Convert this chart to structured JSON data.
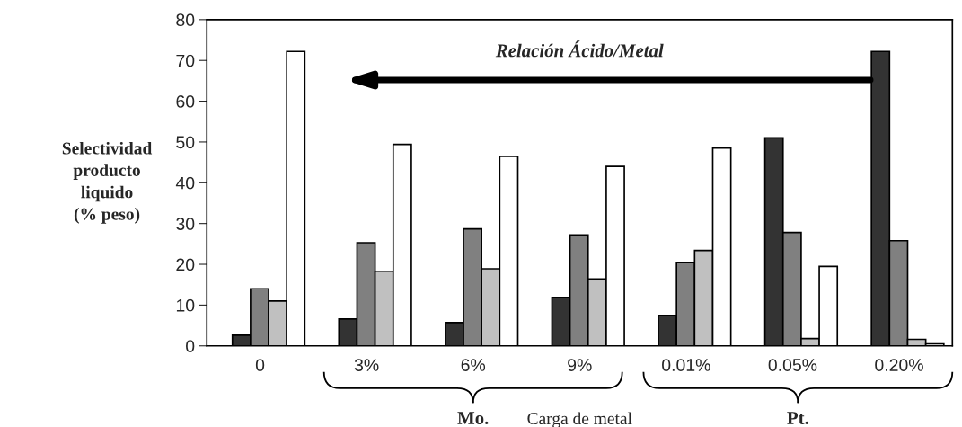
{
  "chart_data": {
    "type": "bar",
    "ylabel": "Selectividad\nproducto\nliquido\n(% peso)",
    "xlabel": "Carga de metal",
    "categories": [
      "0",
      "3%",
      "6%",
      "9%",
      "0.01%",
      "0.05%",
      "0.20%"
    ],
    "series": [
      {
        "color": "#333333",
        "values": [
          2.6,
          6.6,
          5.7,
          11.9,
          7.5,
          51,
          72.2
        ]
      },
      {
        "color": "#808080",
        "values": [
          14,
          25.3,
          28.7,
          27.2,
          20.4,
          27.8,
          25.8
        ]
      },
      {
        "color": "#c0c0c0",
        "values": [
          11,
          18.3,
          18.9,
          16.4,
          23.4,
          1.8,
          1.6
        ]
      },
      {
        "color": "#ffffff",
        "values": [
          72.2,
          49.4,
          46.5,
          44,
          48.5,
          19.5,
          0.5
        ]
      }
    ],
    "ylim": [
      0,
      80
    ],
    "yticks": [
      0,
      10,
      20,
      30,
      40,
      50,
      60,
      70,
      80
    ],
    "grid": false,
    "legend": false,
    "annotations": [
      "Relación Ácido/Metal",
      "Mo.",
      "Pt."
    ]
  }
}
